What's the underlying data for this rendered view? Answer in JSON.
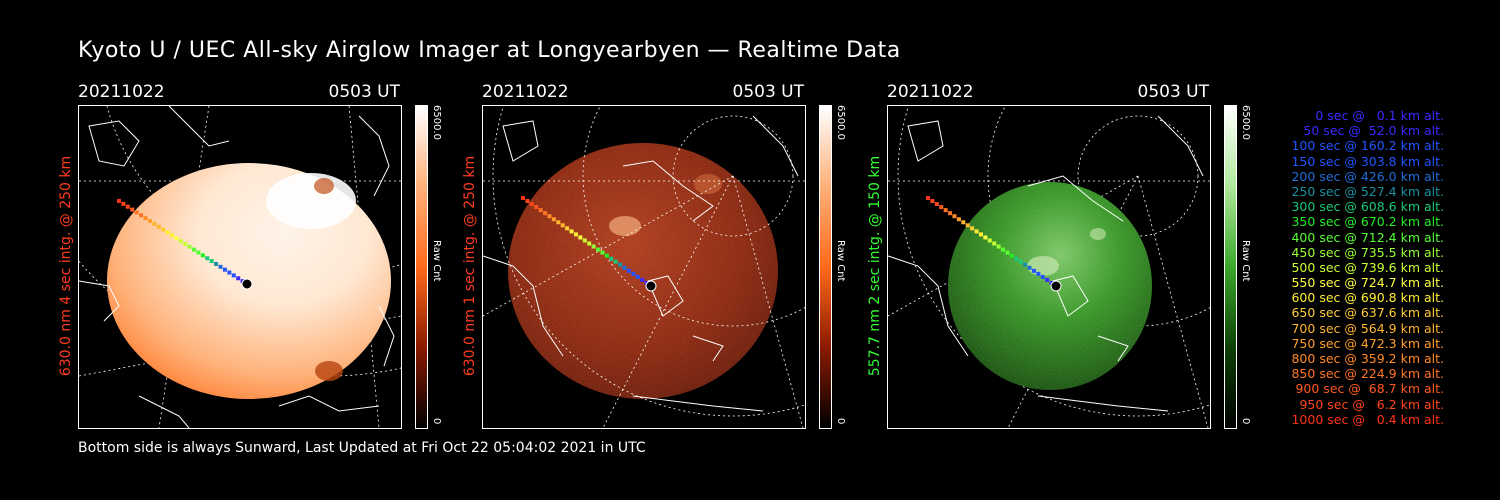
{
  "title": "Kyoto U / UEC All-sky Airglow Imager at Longyearbyen — Realtime Data",
  "footer": "Bottom side is always Sunward, Last Updated at Fri Oct 22 05:04:02 2021 in UTC",
  "panels": [
    {
      "date": "20211022",
      "time": "0503 UT",
      "ylabel": "630.0 nm 4 sec intg. @ 250 km",
      "label_color": "#ff3b1f",
      "cbar_max": "6500.0",
      "cbar_min": "0",
      "cbar_unit": "Raw Cnt",
      "cbar_colors": [
        "#ffffff",
        "#ff8a3a",
        "#8a1a00",
        "#000000"
      ]
    },
    {
      "date": "20211022",
      "time": "0503 UT",
      "ylabel": "630.0 nm 1 sec intg. @ 250 km",
      "label_color": "#ff3b1f",
      "cbar_max": "6500.0",
      "cbar_min": "0",
      "cbar_unit": "Raw Cnt",
      "cbar_colors": [
        "#ffffff",
        "#ff8a3a",
        "#8a1a00",
        "#000000"
      ]
    },
    {
      "date": "20211022",
      "time": "0503 UT",
      "ylabel": "557.7 nm 2 sec intg. @ 150 km",
      "label_color": "#33ff33",
      "cbar_max": "6500.0",
      "cbar_min": "0",
      "cbar_unit": "Raw Cnt",
      "cbar_colors": [
        "#ffffff",
        "#7be06a",
        "#1d6a12",
        "#000000"
      ]
    }
  ],
  "legend": [
    {
      "text": "0 sec @   0.1 km alt.",
      "color": "#3b2bff"
    },
    {
      "text": "50 sec @  52.0 km alt.",
      "color": "#3b2bff"
    },
    {
      "text": "100 sec @ 160.2 km alt.",
      "color": "#2255ff"
    },
    {
      "text": "150 sec @ 303.8 km alt.",
      "color": "#2255ff"
    },
    {
      "text": "200 sec @ 426.0 km alt.",
      "color": "#1f6ed8"
    },
    {
      "text": "250 sec @ 527.4 km alt.",
      "color": "#1a8fa0"
    },
    {
      "text": "300 sec @ 608.6 km alt.",
      "color": "#19c97a"
    },
    {
      "text": "350 sec @ 670.2 km alt.",
      "color": "#22ee22"
    },
    {
      "text": "400 sec @ 712.4 km alt.",
      "color": "#55ff33"
    },
    {
      "text": "450 sec @ 735.5 km alt.",
      "color": "#99ff33"
    },
    {
      "text": "500 sec @ 739.6 km alt.",
      "color": "#ccff33"
    },
    {
      "text": "550 sec @ 724.7 km alt.",
      "color": "#ffff44"
    },
    {
      "text": "600 sec @ 690.8 km alt.",
      "color": "#ffee33"
    },
    {
      "text": "650 sec @ 637.6 km alt.",
      "color": "#ffcc33"
    },
    {
      "text": "700 sec @ 564.9 km alt.",
      "color": "#ffb52e"
    },
    {
      "text": "750 sec @ 472.3 km alt.",
      "color": "#ff9f2a"
    },
    {
      "text": "800 sec @ 359.2 km alt.",
      "color": "#ff8a28"
    },
    {
      "text": "850 sec @ 224.9 km alt.",
      "color": "#ff7424"
    },
    {
      "text": "900 sec @  68.7 km alt.",
      "color": "#ff5a20"
    },
    {
      "text": "950 sec @   6.2 km alt.",
      "color": "#ff461c"
    },
    {
      "text": "1000 sec @   0.4 km alt.",
      "color": "#ff3318"
    }
  ]
}
